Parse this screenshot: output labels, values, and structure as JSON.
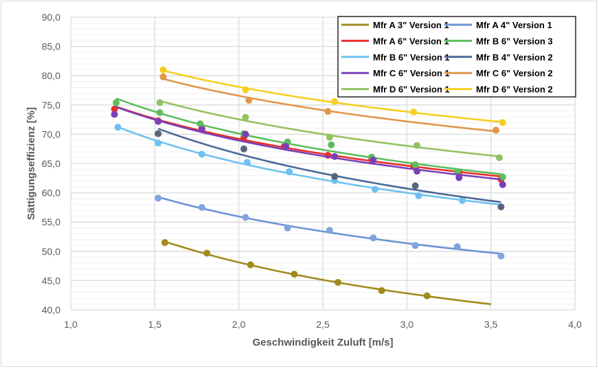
{
  "chart_data": {
    "type": "scatter",
    "title": "",
    "xlabel": "Geschwindigkeit Zuluft [m/s]",
    "ylabel": "Sättigungseffizienz [%]",
    "xlim": [
      1.0,
      4.0
    ],
    "ylim": [
      40.0,
      90.0
    ],
    "xticks": [
      "1,0",
      "1,5",
      "2,0",
      "2,5",
      "3,0",
      "3,5",
      "4,0"
    ],
    "yticks": [
      "40,0",
      "45,0",
      "50,0",
      "55,0",
      "60,0",
      "65,0",
      "70,0",
      "75,0",
      "80,0",
      "85,0",
      "90,0"
    ],
    "grid": true,
    "legend_position": "top-right",
    "trendline": "power",
    "series": [
      {
        "name": "Mfr A 3\" Version 1",
        "color": "#a08b1c",
        "trend_x": [
          1.55,
          3.5
        ],
        "x": [
          1.56,
          1.81,
          2.07,
          2.33,
          2.59,
          2.85,
          3.12
        ],
        "y": [
          51.5,
          49.7,
          47.7,
          46.1,
          44.7,
          43.3,
          42.4
        ]
      },
      {
        "name": "Mfr A 4\" Version 1",
        "color": "#6a94d4",
        "point_color": "#7fa3dc",
        "trend_x": [
          1.52,
          3.56
        ],
        "x": [
          1.52,
          1.78,
          2.04,
          2.29,
          2.54,
          2.8,
          3.05,
          3.3,
          3.56
        ],
        "y": [
          59.1,
          57.5,
          55.8,
          54.0,
          53.6,
          52.3,
          51.0,
          50.8,
          49.2
        ]
      },
      {
        "name": "Mfr A 6\" Version 1",
        "color": "#e8302a",
        "trend_x": [
          1.27,
          3.56
        ],
        "x": [
          1.26,
          1.52,
          1.78,
          2.03,
          2.27,
          2.53,
          2.79,
          3.04,
          3.31,
          3.56
        ],
        "y": [
          74.3,
          72.3,
          71.0,
          69.5,
          67.9,
          66.4,
          65.7,
          64.6,
          63.5,
          62.3
        ]
      },
      {
        "name": "Mfr B 6\" Version 3",
        "color": "#5dbd5d",
        "trend_x": [
          1.27,
          3.57
        ],
        "x": [
          1.27,
          1.53,
          1.77,
          2.03,
          2.29,
          2.55,
          2.79,
          3.05,
          3.3,
          3.57
        ],
        "y": [
          75.4,
          73.7,
          71.8,
          70.1,
          68.7,
          68.2,
          66.1,
          64.8,
          63.6,
          62.7
        ]
      },
      {
        "name": "Mfr B 6\" Version 1",
        "color": "#6ec1f0",
        "trend_x": [
          1.28,
          3.56
        ],
        "x": [
          1.28,
          1.52,
          1.78,
          2.05,
          2.3,
          2.57,
          2.81,
          3.07,
          3.33
        ],
        "y": [
          71.2,
          68.5,
          66.6,
          65.2,
          63.6,
          62.1,
          60.6,
          59.5,
          58.7
        ]
      },
      {
        "name": "Mfr B 4\" Version 2",
        "color": "#4a6898",
        "point_color": "#5b6479",
        "trend_x": [
          1.52,
          3.56
        ],
        "x": [
          1.52,
          2.03,
          2.57,
          3.05,
          3.56
        ],
        "y": [
          70.1,
          67.5,
          62.8,
          61.2,
          57.6
        ]
      },
      {
        "name": "Mfr C 6\" Version 1",
        "color": "#7b40b8",
        "trend_x": [
          1.27,
          3.56
        ],
        "x": [
          1.26,
          1.52,
          1.78,
          2.04,
          2.28,
          2.57,
          2.8,
          3.06,
          3.31,
          3.57
        ],
        "y": [
          73.4,
          72.2,
          70.8,
          70.0,
          67.9,
          66.2,
          65.6,
          63.7,
          62.6,
          61.4
        ]
      },
      {
        "name": "Mfr C 6\" Version 2",
        "color": "#e0974c",
        "trend_x": [
          1.55,
          3.53
        ],
        "x": [
          1.55,
          2.06,
          2.53,
          3.53
        ],
        "y": [
          79.8,
          75.8,
          73.9,
          70.7
        ]
      },
      {
        "name": "Mfr D 6\" Version 1",
        "color": "#93c162",
        "trend_x": [
          1.53,
          3.55
        ],
        "x": [
          1.53,
          2.04,
          2.54,
          3.06,
          3.55
        ],
        "y": [
          75.4,
          72.9,
          69.5,
          68.1,
          66.0
        ]
      },
      {
        "name": "Mfr D 6\" Version 2",
        "color": "#f5cf1f",
        "trend_x": [
          1.55,
          3.57
        ],
        "x": [
          1.55,
          2.04,
          2.57,
          3.04,
          3.57
        ],
        "y": [
          81.0,
          77.6,
          75.6,
          73.8,
          72.0
        ]
      }
    ],
    "legend_order": [
      0,
      1,
      2,
      3,
      4,
      5,
      6,
      7,
      8,
      9
    ]
  }
}
